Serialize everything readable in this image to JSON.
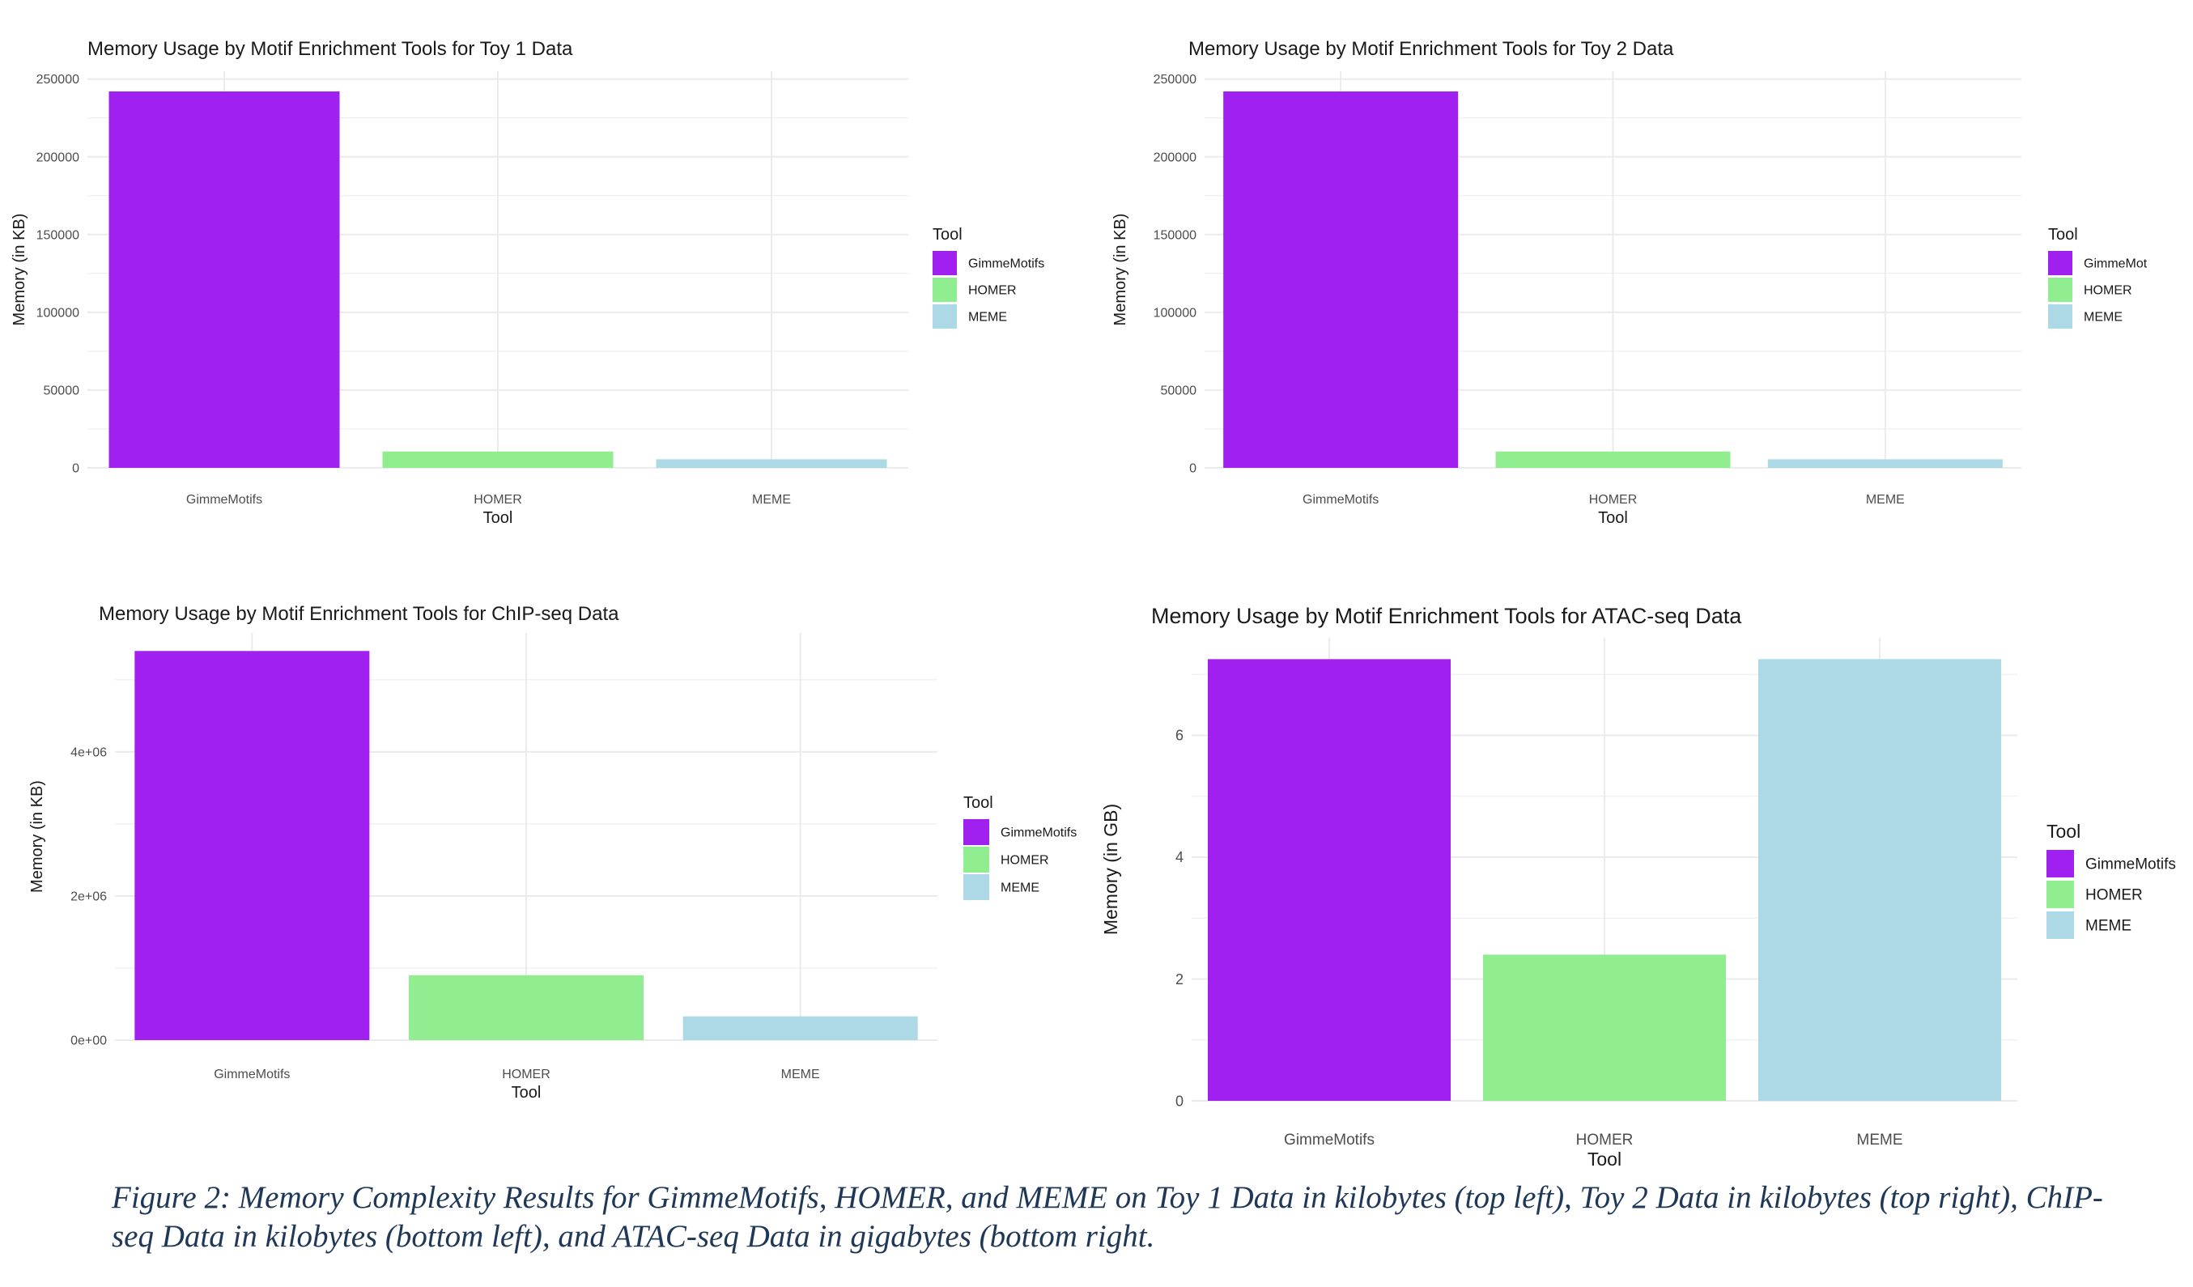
{
  "figure": {
    "caption": "Figure 2: Memory Complexity Results for GimmeMotifs, HOMER, and MEME on Toy 1 Data in kilobytes (top left), Toy 2 Data in kilobytes (top right), ChIP-seq Data in kilobytes (bottom left), and ATAC-seq Data in gigabytes (bottom right."
  },
  "colors": {
    "GimmeMotifs": "#a020f0",
    "HOMER": "#90ee90",
    "MEME": "#add8e6",
    "grid": "#ebebeb"
  },
  "chart_data": [
    {
      "type": "bar",
      "title": "Memory Usage by Motif Enrichment Tools for Toy 1 Data",
      "xlabel": "Tool",
      "ylabel": "Memory (in KB)",
      "categories": [
        "GimmeMotifs",
        "HOMER",
        "MEME"
      ],
      "values": [
        242000,
        10500,
        5500
      ],
      "ylim": [
        0,
        255000
      ],
      "yticks": [
        0,
        50000,
        100000,
        150000,
        200000,
        250000
      ],
      "ytick_labels": [
        "0",
        "50000",
        "100000",
        "150000",
        "200000",
        "250000"
      ],
      "legend": {
        "title": "Tool",
        "labels": [
          "GimmeMotifs",
          "HOMER",
          "MEME"
        ],
        "position": "right"
      },
      "grid": true
    },
    {
      "type": "bar",
      "title": "Memory Usage by Motif Enrichment Tools for Toy 2 Data",
      "xlabel": "Tool",
      "ylabel": "Memory (in KB)",
      "categories": [
        "GimmeMotifs",
        "HOMER",
        "MEME"
      ],
      "values": [
        242000,
        10500,
        5500
      ],
      "ylim": [
        0,
        255000
      ],
      "yticks": [
        0,
        50000,
        100000,
        150000,
        200000,
        250000
      ],
      "ytick_labels": [
        "0",
        "50000",
        "100000",
        "150000",
        "200000",
        "250000"
      ],
      "legend": {
        "title": "Tool",
        "labels": [
          "GimmeMot",
          "HOMER",
          "MEME"
        ],
        "position": "right"
      },
      "grid": true
    },
    {
      "type": "bar",
      "title": "Memory Usage by Motif Enrichment Tools for ChIP-seq Data",
      "xlabel": "Tool",
      "ylabel": "Memory (in KB)",
      "categories": [
        "GimmeMotifs",
        "HOMER",
        "MEME"
      ],
      "values": [
        5400000,
        900000,
        330000
      ],
      "ylim": [
        0,
        5650000
      ],
      "yticks": [
        0,
        2000000,
        4000000
      ],
      "ytick_labels": [
        "0e+00",
        "2e+06",
        "4e+06"
      ],
      "legend": {
        "title": "Tool",
        "labels": [
          "GimmeMotifs",
          "HOMER",
          "MEME"
        ],
        "position": "right"
      },
      "grid": true
    },
    {
      "type": "bar",
      "title": "Memory Usage by Motif Enrichment Tools for ATAC-seq Data",
      "xlabel": "Tool",
      "ylabel": "Memory (in GB)",
      "categories": [
        "GimmeMotifs",
        "HOMER",
        "MEME"
      ],
      "values": [
        7.25,
        2.4,
        7.25
      ],
      "ylim": [
        0,
        7.6
      ],
      "yticks": [
        0,
        2,
        4,
        6
      ],
      "ytick_labels": [
        "0",
        "2",
        "4",
        "6"
      ],
      "legend": {
        "title": "Tool",
        "labels": [
          "GimmeMotifs",
          "HOMER",
          "MEME"
        ],
        "position": "right"
      },
      "grid": true
    }
  ]
}
